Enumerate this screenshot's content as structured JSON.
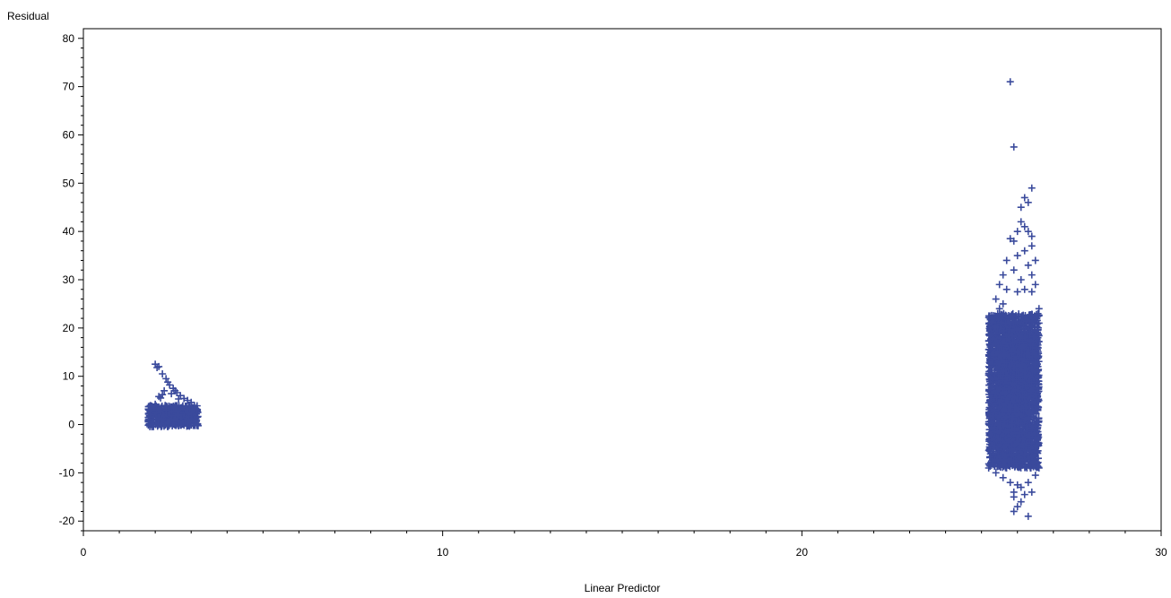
{
  "chart_data": {
    "type": "scatter",
    "title": "",
    "xlabel": "Linear Predictor",
    "ylabel": "Residual",
    "xlim": [
      0,
      30
    ],
    "ylim": [
      -22,
      82
    ],
    "xticks": [
      0,
      10,
      20,
      30
    ],
    "yticks": [
      -20,
      -10,
      0,
      10,
      20,
      30,
      40,
      50,
      60,
      70,
      80
    ],
    "marker": "plus",
    "grid": false,
    "color": "#3a4a9c",
    "series": [
      {
        "clusters": [
          {
            "x_range": [
              1.8,
              3.2
            ],
            "y_range": [
              -1,
              4.5
            ],
            "description_points": 420
          },
          {
            "x_range": [
              25.2,
              26.6
            ],
            "y_range": [
              -13,
              27
            ],
            "description_points": 2600
          }
        ],
        "points": [
          [
            2.0,
            12.5
          ],
          [
            2.05,
            11.8
          ],
          [
            2.1,
            12.0
          ],
          [
            2.2,
            10.5
          ],
          [
            2.3,
            9.5
          ],
          [
            2.35,
            8.8
          ],
          [
            2.4,
            8.2
          ],
          [
            2.5,
            7.5
          ],
          [
            2.55,
            7.0
          ],
          [
            2.6,
            6.6
          ],
          [
            2.7,
            6.0
          ],
          [
            2.8,
            5.4
          ],
          [
            2.9,
            5.0
          ],
          [
            3.0,
            4.6
          ],
          [
            2.2,
            6.2
          ],
          [
            2.1,
            5.8
          ],
          [
            2.15,
            5.5
          ],
          [
            2.25,
            7.0
          ],
          [
            2.45,
            6.4
          ],
          [
            2.65,
            5.3
          ],
          [
            2.0,
            4.2
          ],
          [
            1.9,
            3.8
          ],
          [
            25.8,
            71
          ],
          [
            25.9,
            57.5
          ],
          [
            26.4,
            49
          ],
          [
            26.2,
            47
          ],
          [
            26.3,
            46
          ],
          [
            26.1,
            45
          ],
          [
            26.1,
            42
          ],
          [
            26.2,
            41
          ],
          [
            26.3,
            40
          ],
          [
            26.0,
            40
          ],
          [
            26.4,
            39
          ],
          [
            25.9,
            38
          ],
          [
            25.8,
            38.5
          ],
          [
            26.4,
            37
          ],
          [
            26.2,
            36
          ],
          [
            26.0,
            35
          ],
          [
            26.5,
            34
          ],
          [
            25.7,
            34
          ],
          [
            26.3,
            33
          ],
          [
            25.9,
            32
          ],
          [
            26.4,
            31
          ],
          [
            25.6,
            31
          ],
          [
            26.1,
            30
          ],
          [
            26.5,
            29
          ],
          [
            25.5,
            29
          ],
          [
            26.2,
            28
          ],
          [
            25.7,
            28
          ],
          [
            26.0,
            27.5
          ],
          [
            26.4,
            27.5
          ],
          [
            25.4,
            26
          ],
          [
            25.6,
            25
          ],
          [
            25.5,
            24
          ],
          [
            26.6,
            24
          ],
          [
            25.3,
            22
          ],
          [
            25.4,
            20
          ],
          [
            26.6,
            21
          ],
          [
            25.3,
            -8
          ],
          [
            25.2,
            -9
          ],
          [
            26.6,
            -9
          ],
          [
            25.4,
            -10
          ],
          [
            26.5,
            -10.5
          ],
          [
            25.6,
            -11
          ],
          [
            25.8,
            -12
          ],
          [
            26.0,
            -12.5
          ],
          [
            26.3,
            -12
          ],
          [
            26.1,
            -13
          ],
          [
            25.9,
            -14
          ],
          [
            26.2,
            -14.5
          ],
          [
            26.4,
            -14
          ],
          [
            25.9,
            -15
          ],
          [
            26.1,
            -16
          ],
          [
            26.0,
            -17
          ],
          [
            25.9,
            -18
          ],
          [
            26.3,
            -19
          ]
        ]
      }
    ]
  }
}
